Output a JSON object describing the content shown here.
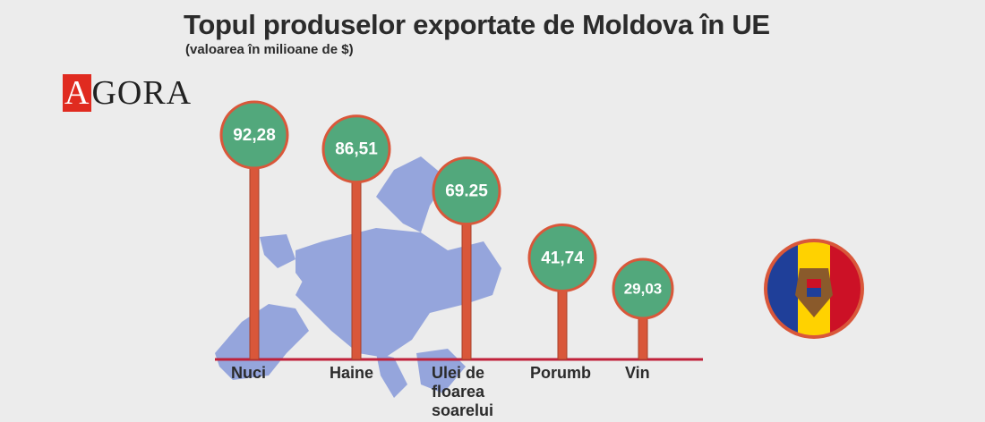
{
  "chart_data": {
    "type": "lollipop",
    "title": "Topul produselor exportate de Moldova în UE",
    "subtitle": "(valoarea în milioane de $)",
    "logo": "AGORA",
    "categories": [
      "Nuci",
      "Haine",
      "Ulei de floarea soarelui",
      "Porumb",
      "Vin"
    ],
    "values": [
      92.28,
      86.51,
      69.25,
      41.74,
      29.03
    ],
    "value_labels": [
      "92,28",
      "86,51",
      "69.25",
      "41,74",
      "29,03"
    ],
    "color": "#d9573a",
    "bubble_color": "#52a87c",
    "ylim": [
      0,
      100
    ]
  }
}
